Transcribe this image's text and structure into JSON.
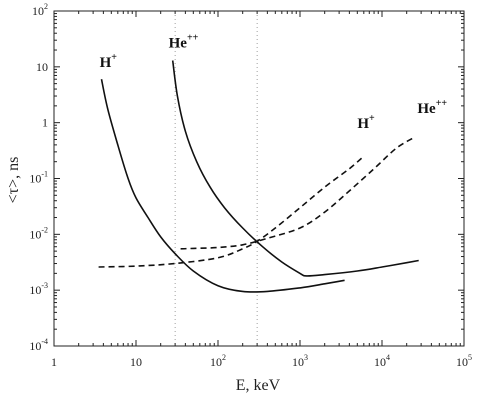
{
  "chart_data": {
    "type": "line",
    "title": "",
    "xlabel": "E, keV",
    "ylabel": "<τ>, ns",
    "xscale": "log",
    "yscale": "log",
    "xlim": [
      1,
      100000
    ],
    "ylim": [
      0.0001,
      100
    ],
    "grid": "dotted vertical gridlines at 30 and 300 (keV); no horizontal grid",
    "x_ticks": [
      "1",
      "10",
      "10^2",
      "10^3",
      "10^4",
      "10^5"
    ],
    "y_ticks": [
      "10^-4",
      "10^-3",
      "10^-2",
      "10^-1",
      "1",
      "10",
      "10^2"
    ],
    "series": [
      {
        "name": "H+",
        "style": "solid",
        "x": [
          3.8,
          4.5,
          6,
          8,
          10,
          14,
          20,
          30,
          50,
          100,
          200,
          400,
          1000,
          2000,
          3500
        ],
        "y": [
          6,
          1.8,
          0.4,
          0.1,
          0.045,
          0.02,
          0.009,
          0.0045,
          0.0022,
          0.0012,
          0.00095,
          0.00095,
          0.0011,
          0.0013,
          0.0015
        ]
      },
      {
        "name": "He++",
        "style": "solid",
        "x": [
          28,
          32,
          40,
          55,
          80,
          120,
          200,
          350,
          600,
          1000,
          1200,
          2000,
          5000,
          10000,
          20000,
          28000
        ],
        "y": [
          13,
          3,
          0.7,
          0.2,
          0.07,
          0.03,
          0.013,
          0.006,
          0.0032,
          0.002,
          0.0018,
          0.0019,
          0.0022,
          0.0026,
          0.0031,
          0.0034
        ]
      },
      {
        "name": "H+",
        "style": "dashed",
        "x": [
          3.5,
          10,
          30,
          100,
          200,
          300,
          500,
          1000,
          2000,
          4000,
          6000
        ],
        "y": [
          0.0026,
          0.0027,
          0.003,
          0.0038,
          0.0055,
          0.0075,
          0.013,
          0.03,
          0.07,
          0.15,
          0.25
        ]
      },
      {
        "name": "He++",
        "style": "dashed",
        "x": [
          35,
          50,
          100,
          200,
          400,
          1000,
          2000,
          4000,
          8000,
          15000,
          25000
        ],
        "y": [
          0.0055,
          0.0056,
          0.0058,
          0.0065,
          0.0085,
          0.013,
          0.025,
          0.06,
          0.15,
          0.35,
          0.55
        ]
      }
    ],
    "labels": [
      {
        "base": "H",
        "sup": "+",
        "x": 3.6,
        "y": 10
      },
      {
        "base": "He",
        "sup": "++",
        "x": 25,
        "y": 22
      },
      {
        "base": "H",
        "sup": "+",
        "x": 5000,
        "y": 0.8
      },
      {
        "base": "He",
        "sup": "++",
        "x": 27000,
        "y": 1.5
      }
    ]
  }
}
